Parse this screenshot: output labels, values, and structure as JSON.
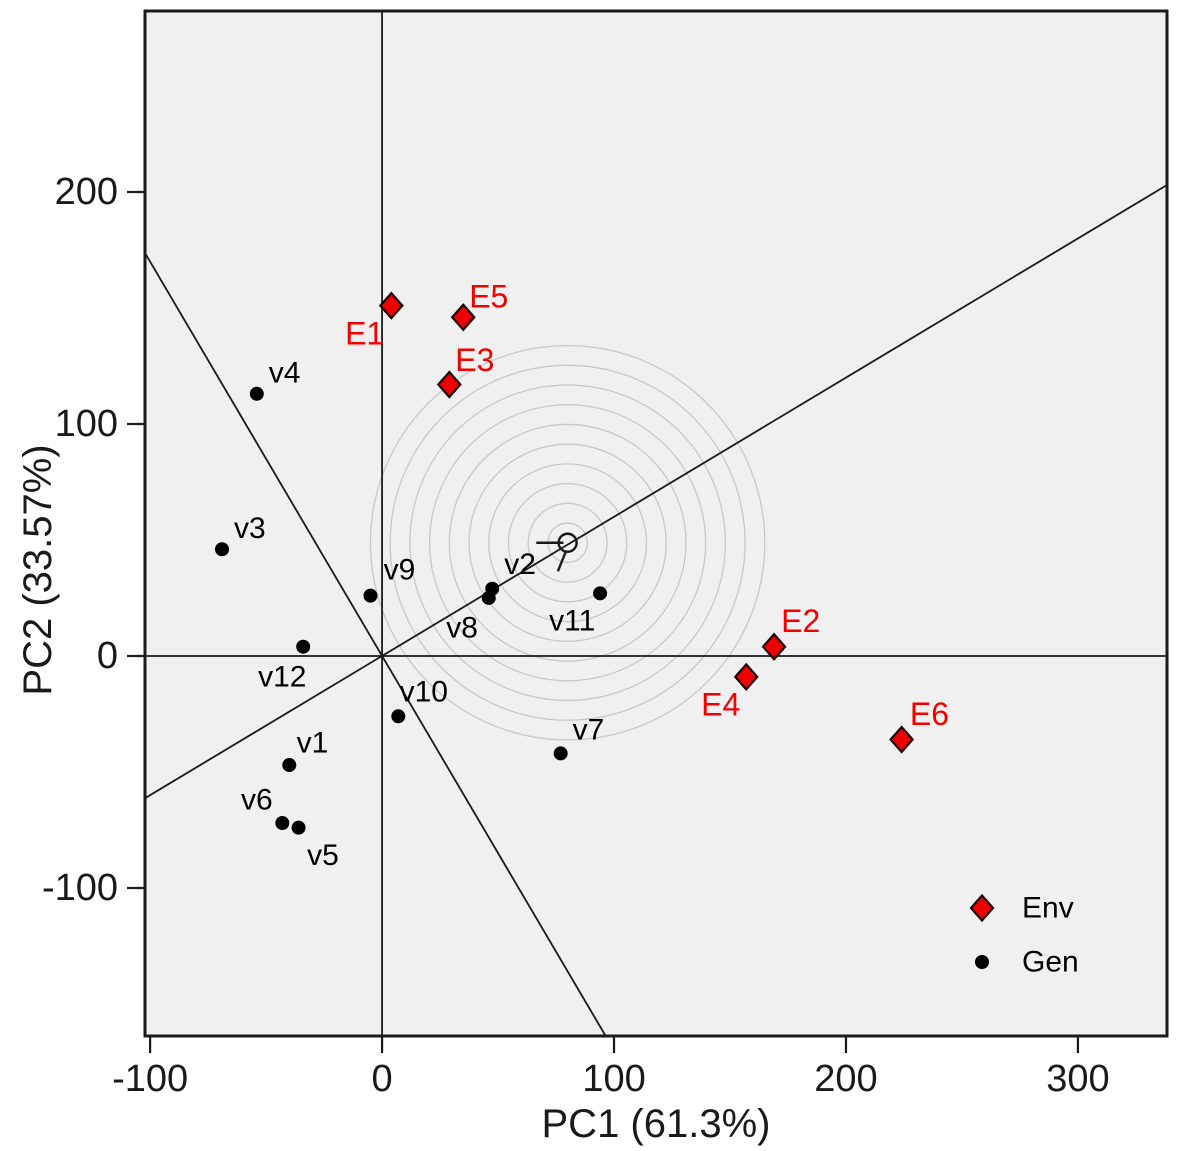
{
  "figure": {
    "background": "#ffffff",
    "plot_background": "#f0f0f0",
    "frame_color": "#1a1a1a",
    "line_color": "#1a1a1a",
    "ring_color": "#c8c8c8",
    "gen_color": "#000000",
    "env_fill": "#ee0000",
    "env_stroke": "#1a0000",
    "env_label_color": "#f30000",
    "gen_label_color": "#000000",
    "tick_color": "#1a1a1a"
  },
  "chart_data": {
    "type": "scatter",
    "title": "",
    "xlabel": "PC1 (61.3%)",
    "ylabel": "PC2 (33.57%)",
    "xlim": [
      -102.2,
      338.4
    ],
    "ylim": [
      -163.8,
      278.0
    ],
    "x_ticks": [
      -100,
      0,
      100,
      200,
      300
    ],
    "y_ticks": [
      -100,
      0,
      100,
      200
    ],
    "grid": false,
    "series": [
      {
        "name": "Env",
        "marker": "diamond",
        "color": "#ee0000",
        "points": [
          {
            "label": "E1",
            "x": 4,
            "y": 151,
            "label_x": -7.5,
            "label_y": 139
          },
          {
            "label": "E2",
            "x": 169,
            "y": 4,
            "label_x": 180.5,
            "label_y": 15
          },
          {
            "label": "E3",
            "x": 29,
            "y": 117,
            "label_x": 40,
            "label_y": 127.5
          },
          {
            "label": "E4",
            "x": 157,
            "y": -9,
            "label_x": 146,
            "label_y": -21
          },
          {
            "label": "E5",
            "x": 35,
            "y": 146,
            "label_x": 46,
            "label_y": 155
          },
          {
            "label": "E6",
            "x": 224,
            "y": -36,
            "label_x": 236,
            "label_y": -25
          }
        ]
      },
      {
        "name": "Gen",
        "marker": "dot",
        "color": "#000000",
        "points": [
          {
            "label": "v1",
            "x": -40,
            "y": -47,
            "label_x": -30,
            "label_y": -37.5
          },
          {
            "label": "v2",
            "x": 47.5,
            "y": 29,
            "label_x": 59.5,
            "label_y": 39.5
          },
          {
            "label": "v3",
            "x": -69,
            "y": 46,
            "label_x": -57,
            "label_y": 55
          },
          {
            "label": "v4",
            "x": -54,
            "y": 113,
            "label_x": -42,
            "label_y": 122
          },
          {
            "label": "v5",
            "x": -36,
            "y": -74,
            "label_x": -25.5,
            "label_y": -86
          },
          {
            "label": "v6",
            "x": -43,
            "y": -72,
            "label_x": -54,
            "label_y": -62
          },
          {
            "label": "v7",
            "x": 77,
            "y": -42,
            "label_x": 89,
            "label_y": -32
          },
          {
            "label": "v8",
            "x": 46,
            "y": 25,
            "label_x": 34.5,
            "label_y": 12
          },
          {
            "label": "v9",
            "x": -5,
            "y": 26,
            "label_x": 7.5,
            "label_y": 37
          },
          {
            "label": "v10",
            "x": 7,
            "y": -26,
            "label_x": 18,
            "label_y": -15.5
          },
          {
            "label": "v11",
            "x": 94,
            "y": 27,
            "label_x": 82,
            "label_y": 15
          },
          {
            "label": "v12",
            "x": -34,
            "y": 4,
            "label_x": -43,
            "label_y": -9
          }
        ]
      }
    ],
    "reference_lines": [
      {
        "name": "x-zero-line",
        "x1": -102.2,
        "y1": 0,
        "x2": 338.4,
        "y2": 0
      },
      {
        "name": "y-zero-line",
        "x1": 0,
        "y1": -163.8,
        "x2": 0,
        "y2": 278.0
      },
      {
        "name": "average-environment-axis",
        "x1": -102.2,
        "y1": -61.3,
        "x2": 338.4,
        "y2": 203.0
      },
      {
        "name": "perpendicular-axis",
        "x1": -102.2,
        "y1": 173.7,
        "x2": 96.4,
        "y2": -163.8
      }
    ],
    "concentric_circles": {
      "center_x": 80,
      "center_y": 48.8,
      "radii": [
        8.5,
        17,
        25.5,
        34,
        42.5,
        51,
        59.5,
        68,
        76.5,
        85
      ]
    },
    "average_env_marker": {
      "circle_x": 80,
      "circle_y": 48.8,
      "circle_radius_px": 9,
      "arrow_segments": [
        {
          "x1": 66.5,
          "y1": 48.8,
          "x2": 78.2,
          "y2": 48.8
        },
        {
          "x1": 75.8,
          "y1": 36.5,
          "x2": 79.3,
          "y2": 45.2
        }
      ]
    },
    "legend": {
      "position": "lower right",
      "entries": [
        {
          "label": "Env",
          "marker": "diamond"
        },
        {
          "label": "Gen",
          "marker": "dot"
        }
      ]
    }
  }
}
